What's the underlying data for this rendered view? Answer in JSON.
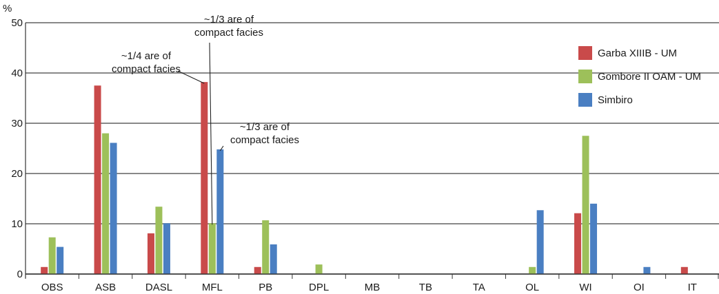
{
  "chart_data": {
    "type": "bar",
    "ylabel": "%",
    "ylim": [
      0,
      50
    ],
    "yticks": [
      "0",
      "10",
      "20",
      "30",
      "40",
      "50"
    ],
    "grid": true,
    "legend_position": "top-right",
    "categories": [
      "OBS",
      "ASB",
      "DASL",
      "MFL",
      "PB",
      "DPL",
      "MB",
      "TB",
      "TA",
      "OL",
      "WI",
      "OI",
      "IT"
    ],
    "series": [
      {
        "name": "Garba XIIIB - UM",
        "color": "#c94a4a",
        "values": [
          1.4,
          37.5,
          8.1,
          38.2,
          1.4,
          0,
          0,
          0,
          0,
          0,
          12.1,
          0,
          1.4
        ]
      },
      {
        "name": "Gombore II OAM - UM",
        "color": "#9dc05a",
        "values": [
          7.3,
          28.0,
          13.4,
          10.1,
          10.7,
          1.9,
          0,
          0,
          0,
          1.4,
          27.5,
          0,
          0
        ]
      },
      {
        "name": "Simbiro",
        "color": "#4a7fc2",
        "values": [
          5.4,
          26.1,
          10.1,
          24.8,
          5.9,
          0,
          0,
          0,
          0,
          12.7,
          14.0,
          1.4,
          0
        ]
      }
    ],
    "annotations": [
      {
        "lines": [
          "~1/3 are of",
          "compact facies"
        ],
        "category": "MFL",
        "series": 1
      },
      {
        "lines": [
          "~1/4 are of",
          "compact facies"
        ],
        "category": "MFL",
        "series": 0
      },
      {
        "lines": [
          "~1/3 are of",
          "compact facies"
        ],
        "category": "MFL",
        "series": 2
      }
    ]
  }
}
